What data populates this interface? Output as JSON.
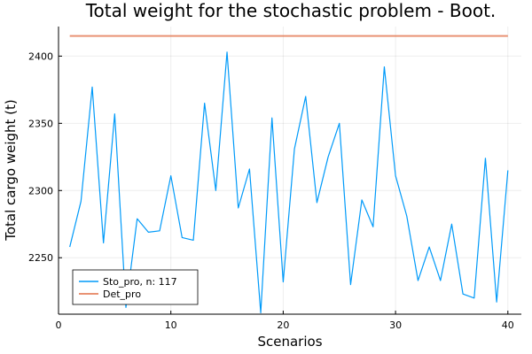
{
  "chart_data": {
    "type": "line",
    "title": "Total weight for the stochastic problem - Boot.",
    "xlabel": "Scenarios",
    "ylabel": "Total cargo weight (t)",
    "xlim": [
      0,
      41.2
    ],
    "ylim": [
      2208,
      2422
    ],
    "xticks": [
      0,
      10,
      20,
      30,
      40
    ],
    "yticks": [
      2250,
      2300,
      2350,
      2400
    ],
    "grid": true,
    "legend_position": "bottom-left",
    "series": [
      {
        "name": "Sto_pro, n: 117",
        "color": "#009af9",
        "x": [
          1,
          2,
          3,
          4,
          5,
          6,
          7,
          8,
          9,
          10,
          11,
          12,
          13,
          14,
          15,
          16,
          17,
          18,
          19,
          20,
          21,
          22,
          23,
          24,
          25,
          26,
          27,
          28,
          29,
          30,
          31,
          32,
          33,
          34,
          35,
          36,
          37,
          38,
          39,
          40
        ],
        "y": [
          2258,
          2292,
          2377,
          2261,
          2357,
          2213,
          2279,
          2269,
          2270,
          2311,
          2265,
          2263,
          2365,
          2300,
          2403,
          2287,
          2316,
          2209,
          2354,
          2232,
          2331,
          2370,
          2291,
          2325,
          2350,
          2230,
          2293,
          2273,
          2392,
          2311,
          2281,
          2233,
          2258,
          2233,
          2275,
          2223,
          2220,
          2324,
          2217,
          2315
        ]
      },
      {
        "name": "Det_pro",
        "color": "#e26f46",
        "x": [
          1,
          40
        ],
        "y": [
          2415,
          2415
        ]
      }
    ]
  }
}
